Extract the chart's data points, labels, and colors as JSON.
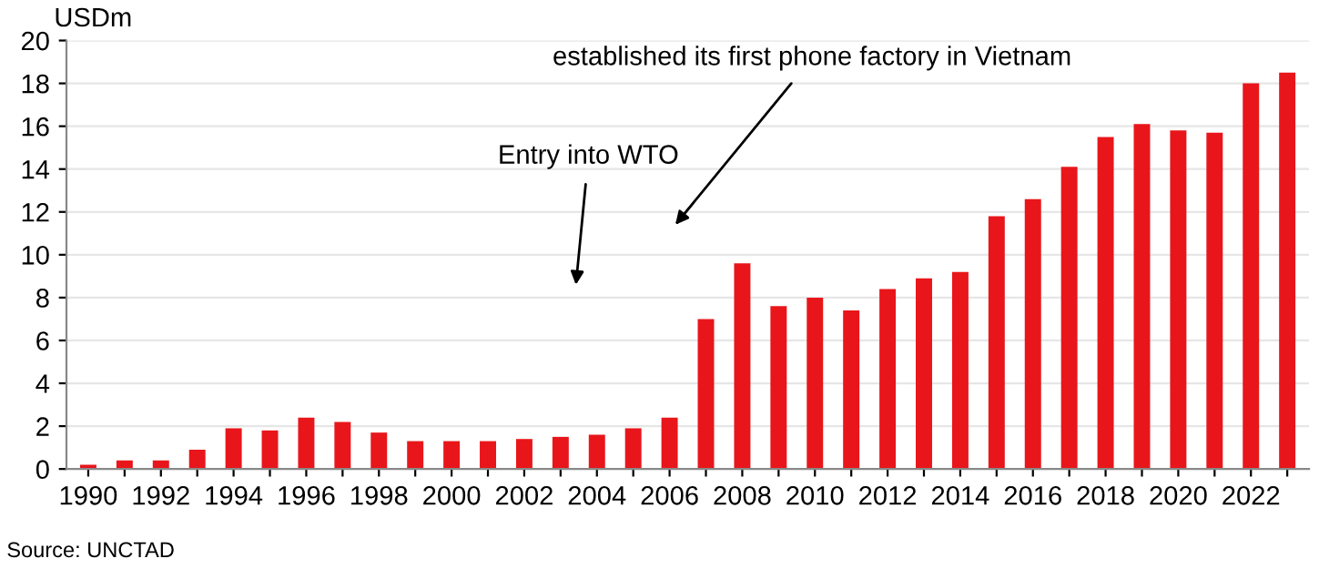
{
  "chart_data": {
    "type": "bar",
    "ylabel": "USDm",
    "categories": [
      "1990",
      null,
      "1992",
      null,
      "1994",
      null,
      "1996",
      null,
      "1998",
      null,
      "2000",
      null,
      "2002",
      null,
      "2004",
      null,
      "2006",
      null,
      "2008",
      null,
      "2010",
      null,
      "2012",
      null,
      "2014",
      null,
      "2016",
      null,
      "2018",
      null,
      "2020",
      null,
      "2022",
      null
    ],
    "values": [
      0.2,
      0.4,
      0.4,
      0.9,
      1.9,
      1.8,
      2.4,
      2.2,
      1.7,
      1.3,
      1.3,
      1.3,
      1.4,
      1.5,
      1.6,
      1.9,
      2.4,
      7.0,
      9.6,
      7.6,
      8.0,
      7.4,
      8.4,
      8.9,
      9.2,
      11.8,
      12.6,
      14.1,
      15.5,
      16.1,
      15.8,
      15.7,
      18.0,
      18.5
    ],
    "color": "#e8161b",
    "ylim": [
      0,
      20
    ],
    "yticks": [
      0,
      2,
      4,
      6,
      8,
      10,
      12,
      14,
      16,
      18,
      20
    ],
    "grid": "y",
    "annotations": [
      "established its first phone factory in Vietnam",
      "Entry into WTO",
      "Source: UNCTAD"
    ]
  }
}
